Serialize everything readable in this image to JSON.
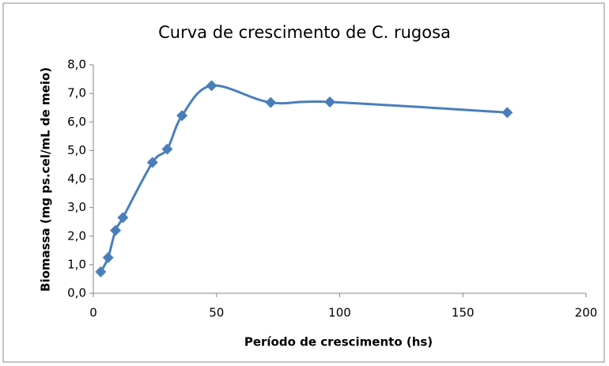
{
  "chart_data": {
    "type": "line",
    "title": "Curva de crescimento de C. rugosa",
    "x_label": "Período de crescimento (hs)",
    "y_label": "Biomassa  (mg ps.cel/mL de meio)",
    "x": [
      3,
      6,
      9,
      12,
      24,
      30,
      36,
      48,
      72,
      96,
      168
    ],
    "series": [
      {
        "name": "Biomassa",
        "color": "#4a7ebb",
        "values": [
          0.75,
          1.25,
          2.2,
          2.65,
          4.58,
          5.05,
          6.22,
          7.27,
          6.68,
          6.7,
          6.33
        ]
      }
    ],
    "xlim": [
      0,
      200
    ],
    "xticks": [
      0,
      50,
      100,
      150,
      200
    ],
    "ylim": [
      0,
      8
    ],
    "yticks": [
      {
        "value": 0,
        "label": "0,0"
      },
      {
        "value": 1,
        "label": "1,0"
      },
      {
        "value": 2,
        "label": "2,0"
      },
      {
        "value": 3,
        "label": "3,0"
      },
      {
        "value": 4,
        "label": "4,0"
      },
      {
        "value": 5,
        "label": "5,0"
      },
      {
        "value": 6,
        "label": "6,0"
      },
      {
        "value": 7,
        "label": "7,0"
      },
      {
        "value": 8,
        "label": "8,0"
      }
    ],
    "grid": false,
    "legend": false
  }
}
